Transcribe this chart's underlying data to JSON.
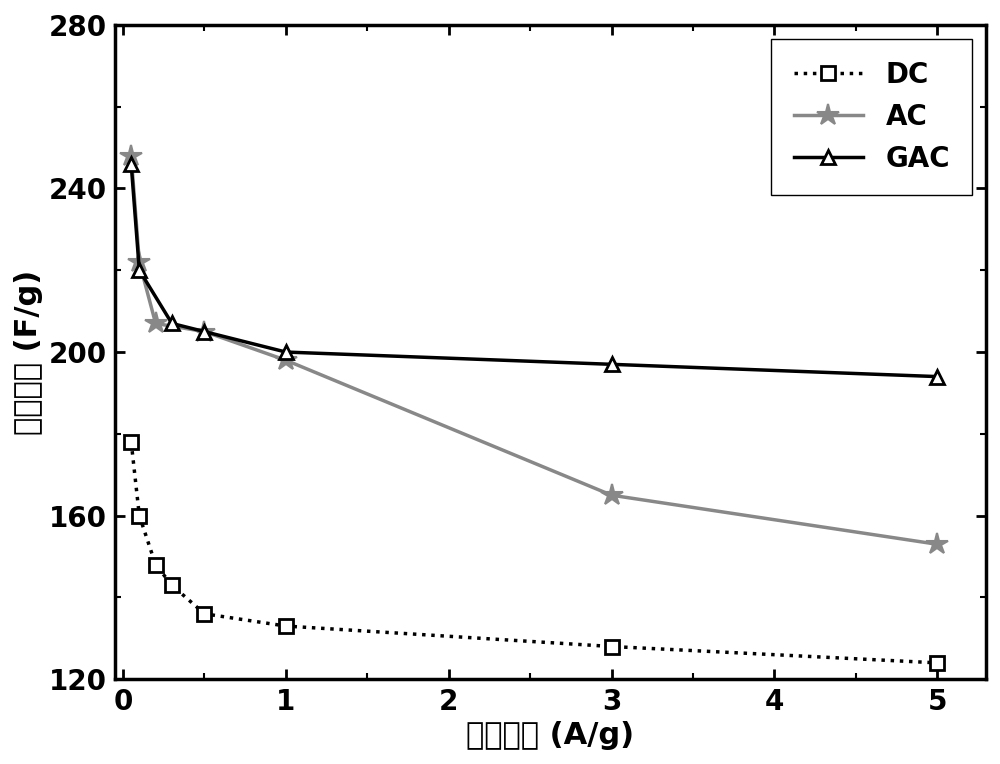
{
  "DC": {
    "x": [
      0.05,
      0.1,
      0.2,
      0.3,
      0.5,
      1.0,
      3.0,
      5.0
    ],
    "y": [
      178,
      160,
      148,
      143,
      136,
      133,
      128,
      124
    ],
    "color": "black",
    "linestyle": "dotted",
    "marker": "s",
    "label": "DC",
    "linewidth": 2.5,
    "markersize": 10,
    "markerfacecolor": "white",
    "markeredgecolor": "black",
    "markeredgewidth": 2
  },
  "AC": {
    "x": [
      0.05,
      0.1,
      0.2,
      0.5,
      1.0,
      3.0,
      5.0
    ],
    "y": [
      248,
      222,
      207,
      205,
      198,
      165,
      153
    ],
    "color": "#888888",
    "linestyle": "solid",
    "marker": "*",
    "label": "AC",
    "linewidth": 2.5,
    "markersize": 16,
    "markerfacecolor": "#888888",
    "markeredgecolor": "#888888",
    "markeredgewidth": 1.5
  },
  "GAC": {
    "x": [
      0.05,
      0.1,
      0.3,
      0.5,
      1.0,
      3.0,
      5.0
    ],
    "y": [
      246,
      220,
      207,
      205,
      200,
      197,
      194
    ],
    "color": "black",
    "linestyle": "solid",
    "marker": "^",
    "label": "GAC",
    "linewidth": 2.5,
    "markersize": 10,
    "markerfacecolor": "white",
    "markeredgecolor": "black",
    "markeredgewidth": 2
  },
  "xlabel": "电流密度 (A/g)",
  "ylabel": "比电容値 (F/g)",
  "xlim": [
    -0.05,
    5.3
  ],
  "ylim": [
    120,
    280
  ],
  "xticks": [
    0,
    1,
    2,
    3,
    4,
    5
  ],
  "yticks": [
    120,
    160,
    200,
    240,
    280
  ],
  "xlabel_fontsize": 22,
  "ylabel_fontsize": 22,
  "tick_fontsize": 20,
  "legend_fontsize": 20,
  "figsize": [
    10.0,
    7.64
  ],
  "dpi": 100,
  "background_color": "white",
  "legend_loc": "upper right"
}
